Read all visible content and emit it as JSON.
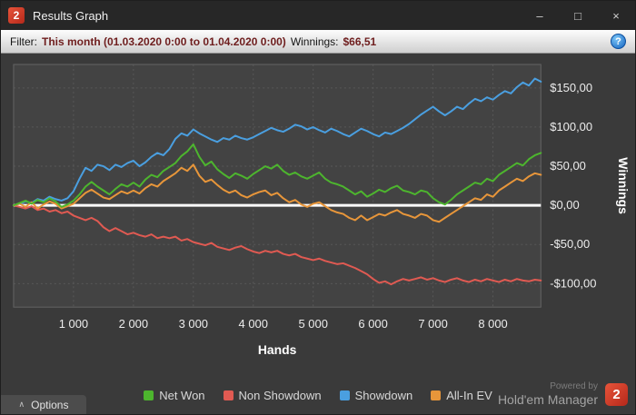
{
  "window": {
    "title": "Results Graph",
    "logo_text": "2",
    "controls": {
      "minimize": "–",
      "maximize": "□",
      "close": "×"
    }
  },
  "filter": {
    "label": "Filter:",
    "value": "This month (01.03.2020 0:00 to 01.04.2020 0:00)",
    "winnings_label": "Winnings:",
    "winnings_value": "$66,51",
    "help": "?"
  },
  "footer": {
    "options_chevron": "∧",
    "options_label": "Options",
    "powered_by": "Powered by",
    "brand": "Hold'em Manager",
    "logo_text": "2"
  },
  "colors": {
    "net_won": "#4db52e",
    "non_showdown": "#e05a52",
    "showdown": "#4a9fe0",
    "all_in_ev": "#e8963a",
    "zero_line": "#ffffff",
    "plot_bg": "#434343",
    "grid": "#585858",
    "tick_text": "#ededed"
  },
  "chart_data": {
    "type": "line",
    "title": "",
    "xlabel": "Hands",
    "ylabel": "Winnings",
    "xlim": [
      0,
      8800
    ],
    "ylim": [
      -130,
      180
    ],
    "grid": true,
    "legend_position": "bottom",
    "zero_line": 0,
    "x_ticks": [
      1000,
      2000,
      3000,
      4000,
      5000,
      6000,
      7000,
      8000
    ],
    "x_tick_labels": [
      "1 000",
      "2 000",
      "3 000",
      "4 000",
      "5 000",
      "6 000",
      "7 000",
      "8 000"
    ],
    "y_ticks": [
      150,
      100,
      50,
      0,
      -50,
      -100
    ],
    "y_tick_labels": [
      "$150,00",
      "$100,00",
      "$50,00",
      "$0,00",
      "-$50,00",
      "-$100,00"
    ],
    "series": [
      {
        "name": "Net Won",
        "color": "#4db52e",
        "x_start": 0,
        "x_step": 100,
        "y": [
          0,
          3,
          6,
          2,
          7,
          4,
          9,
          5,
          -2,
          1,
          6,
          14,
          24,
          30,
          24,
          19,
          14,
          21,
          27,
          24,
          29,
          24,
          33,
          39,
          36,
          44,
          49,
          54,
          63,
          69,
          78,
          62,
          51,
          56,
          46,
          40,
          35,
          41,
          38,
          34,
          40,
          45,
          50,
          47,
          52,
          44,
          39,
          42,
          37,
          34,
          38,
          42,
          34,
          29,
          27,
          24,
          19,
          14,
          18,
          11,
          15,
          20,
          17,
          22,
          25,
          19,
          17,
          14,
          19,
          17,
          9,
          4,
          1,
          7,
          14,
          19,
          24,
          29,
          27,
          34,
          31,
          39,
          44,
          49,
          54,
          51,
          59,
          64,
          67
        ]
      },
      {
        "name": "Non Showdown",
        "color": "#e05a52",
        "x_start": 0,
        "x_step": 100,
        "y": [
          0,
          -2,
          -4,
          -1,
          -6,
          -4,
          -8,
          -6,
          -10,
          -8,
          -13,
          -16,
          -19,
          -16,
          -20,
          -28,
          -33,
          -29,
          -33,
          -37,
          -35,
          -38,
          -40,
          -37,
          -42,
          -40,
          -42,
          -40,
          -45,
          -43,
          -47,
          -49,
          -51,
          -48,
          -53,
          -55,
          -57,
          -54,
          -52,
          -56,
          -59,
          -61,
          -58,
          -60,
          -58,
          -62,
          -64,
          -62,
          -66,
          -68,
          -70,
          -68,
          -71,
          -73,
          -75,
          -74,
          -77,
          -80,
          -84,
          -88,
          -94,
          -99,
          -97,
          -101,
          -97,
          -94,
          -96,
          -94,
          -92,
          -95,
          -93,
          -96,
          -98,
          -95,
          -93,
          -96,
          -98,
          -95,
          -97,
          -94,
          -96,
          -98,
          -95,
          -97,
          -94,
          -96,
          -97,
          -95,
          -96
        ]
      },
      {
        "name": "Showdown",
        "color": "#4a9fe0",
        "x_start": 0,
        "x_step": 100,
        "y": [
          0,
          2,
          5,
          3,
          8,
          6,
          11,
          8,
          6,
          9,
          18,
          34,
          48,
          44,
          52,
          50,
          45,
          52,
          49,
          54,
          57,
          50,
          55,
          62,
          67,
          64,
          72,
          85,
          92,
          89,
          97,
          92,
          88,
          84,
          81,
          86,
          84,
          89,
          86,
          84,
          87,
          91,
          95,
          99,
          96,
          94,
          98,
          103,
          101,
          97,
          100,
          96,
          93,
          98,
          95,
          91,
          88,
          93,
          98,
          95,
          91,
          88,
          93,
          91,
          95,
          99,
          104,
          110,
          116,
          121,
          126,
          120,
          115,
          120,
          126,
          123,
          130,
          136,
          133,
          138,
          135,
          141,
          146,
          143,
          151,
          157,
          153,
          162,
          158
        ]
      },
      {
        "name": "All-In EV",
        "color": "#e8963a",
        "x_start": 0,
        "x_step": 100,
        "y": [
          0,
          2,
          -2,
          4,
          -4,
          1,
          5,
          2,
          -4,
          -1,
          2,
          9,
          16,
          20,
          15,
          10,
          8,
          13,
          18,
          15,
          19,
          15,
          22,
          27,
          24,
          31,
          36,
          41,
          48,
          44,
          52,
          38,
          30,
          33,
          26,
          20,
          16,
          19,
          13,
          10,
          14,
          17,
          19,
          13,
          16,
          9,
          4,
          7,
          1,
          -2,
          2,
          4,
          -1,
          -6,
          -9,
          -11,
          -16,
          -19,
          -13,
          -19,
          -15,
          -11,
          -13,
          -9,
          -6,
          -11,
          -13,
          -16,
          -11,
          -13,
          -19,
          -21,
          -16,
          -11,
          -6,
          -1,
          4,
          9,
          7,
          14,
          11,
          19,
          24,
          29,
          34,
          31,
          37,
          41,
          39
        ]
      }
    ]
  }
}
